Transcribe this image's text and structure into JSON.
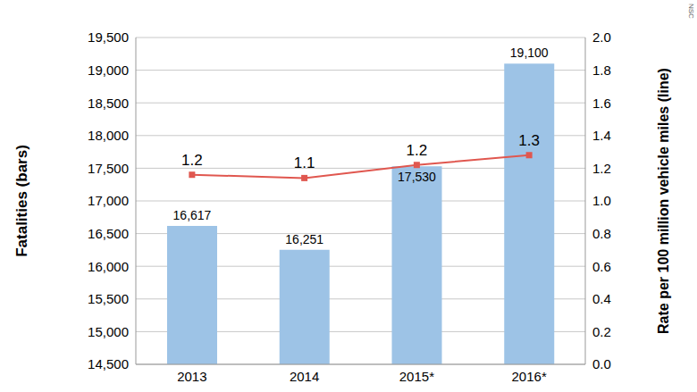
{
  "chart_data": {
    "type": "bar",
    "source": "NSC",
    "categories": [
      "2013",
      "2014",
      "2015*",
      "2016*"
    ],
    "ylabel": "Fatalities (bars)",
    "y2label": "Rate per 100 million vehicle miles (line)",
    "ylim": [
      14500,
      19500
    ],
    "yticks": [
      {
        "value": 14500,
        "label": "14,500"
      },
      {
        "value": 15000,
        "label": "15,000"
      },
      {
        "value": 15500,
        "label": "15,500"
      },
      {
        "value": 16000,
        "label": "16,000"
      },
      {
        "value": 16500,
        "label": "16,500"
      },
      {
        "value": 17000,
        "label": "17,000"
      },
      {
        "value": 17500,
        "label": "17,500"
      },
      {
        "value": 18000,
        "label": "18,000"
      },
      {
        "value": 18500,
        "label": "18,500"
      },
      {
        "value": 19000,
        "label": "19,000"
      },
      {
        "value": 19500,
        "label": "19,500"
      }
    ],
    "y2lim": [
      0,
      2
    ],
    "y2ticks": [
      {
        "value": 0,
        "label": "0.0"
      },
      {
        "value": 0.2,
        "label": "0.2"
      },
      {
        "value": 0.4,
        "label": "0.4"
      },
      {
        "value": 0.6,
        "label": "0.6"
      },
      {
        "value": 0.8,
        "label": "0.8"
      },
      {
        "value": 1,
        "label": "1.0"
      },
      {
        "value": 1.2,
        "label": "1.2"
      },
      {
        "value": 1.4,
        "label": "1.4"
      },
      {
        "value": 1.6,
        "label": "1.6"
      },
      {
        "value": 1.8,
        "label": "1.8"
      },
      {
        "value": 2,
        "label": "2.0"
      }
    ],
    "grid": true,
    "series": [
      {
        "type": "bar",
        "color": "#9dc3e6",
        "values": [
          16617,
          16251,
          17530,
          19100
        ],
        "value_labels": [
          "16,617",
          "16,251",
          "17,530",
          "19,100"
        ],
        "data_labels": true
      },
      {
        "type": "line",
        "axis": "y2",
        "color": "#e0574f",
        "marker": "square",
        "values": [
          1.16,
          1.14,
          1.22,
          1.28
        ],
        "value_labels": [
          "1.2",
          "1.1",
          "1.2",
          "1.3"
        ],
        "data_labels": true
      }
    ]
  }
}
